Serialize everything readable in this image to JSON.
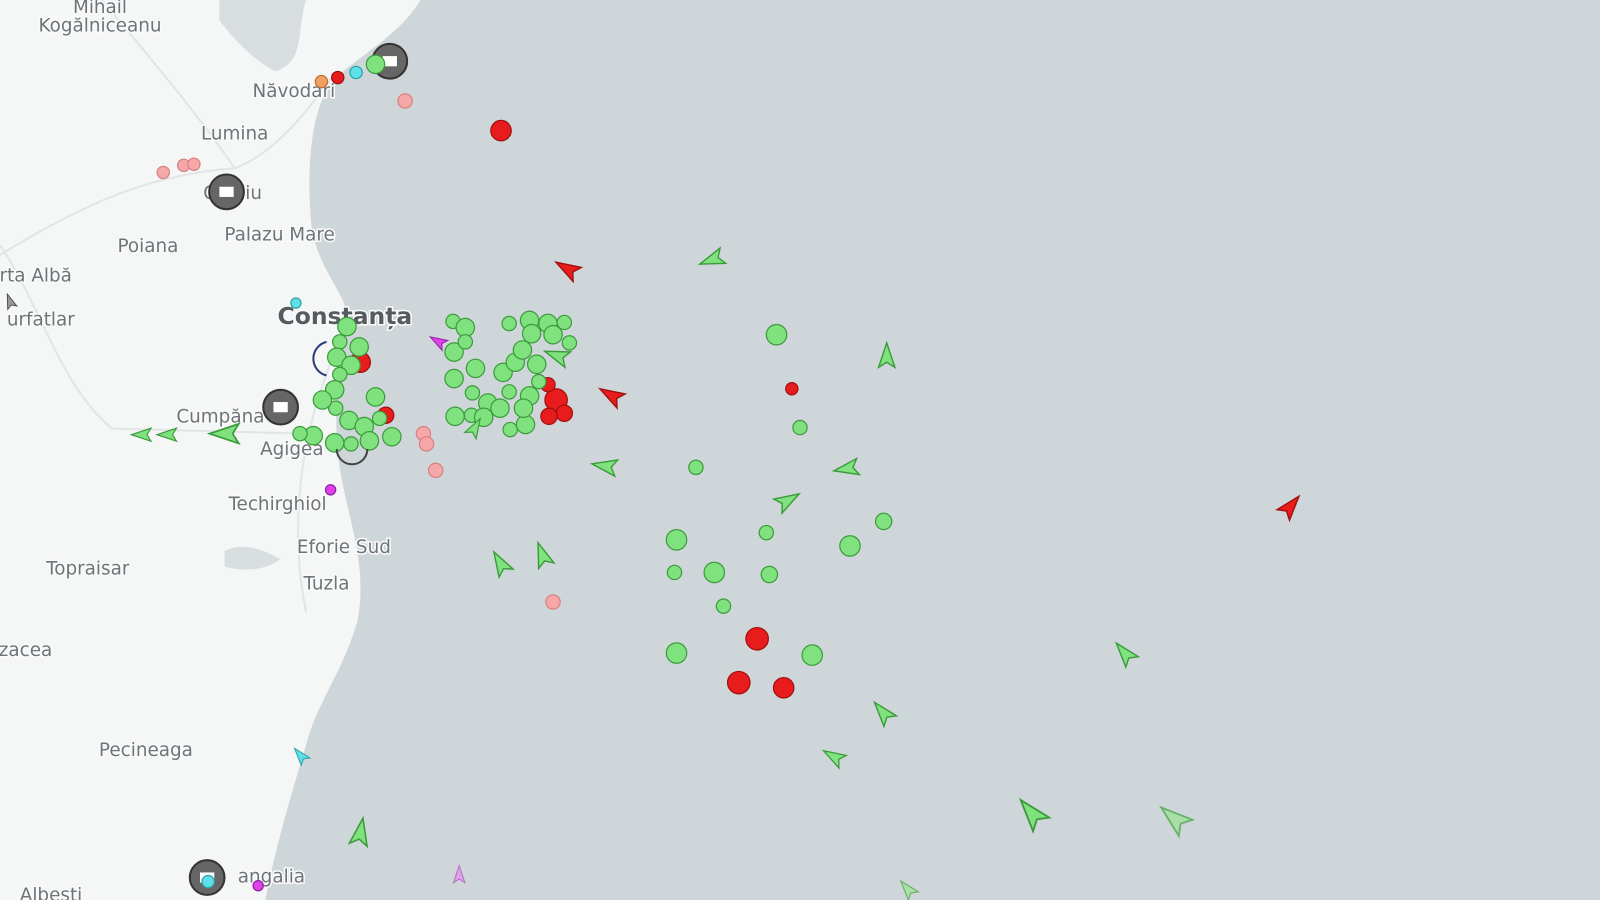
{
  "places": [
    {
      "label": "Mihail"
    },
    {
      "label": "Kogălniceanu"
    },
    {
      "label": "Năvodari"
    },
    {
      "label": "Lumina"
    },
    {
      "label": "Ovidiu"
    },
    {
      "label": "Poiana"
    },
    {
      "label": "Palazu Mare"
    },
    {
      "label": "rta Albă"
    },
    {
      "label": "urfatlar"
    },
    {
      "label": "Constanța"
    },
    {
      "label": "Cumpăna"
    },
    {
      "label": "Agigea"
    },
    {
      "label": "Techirghiol"
    },
    {
      "label": "Eforie Sud"
    },
    {
      "label": "Tuzla"
    },
    {
      "label": "Topraisar"
    },
    {
      "label": "zacea"
    },
    {
      "label": "Pecineaga"
    },
    {
      "label": "angalia"
    },
    {
      "label": "Albesti"
    }
  ]
}
